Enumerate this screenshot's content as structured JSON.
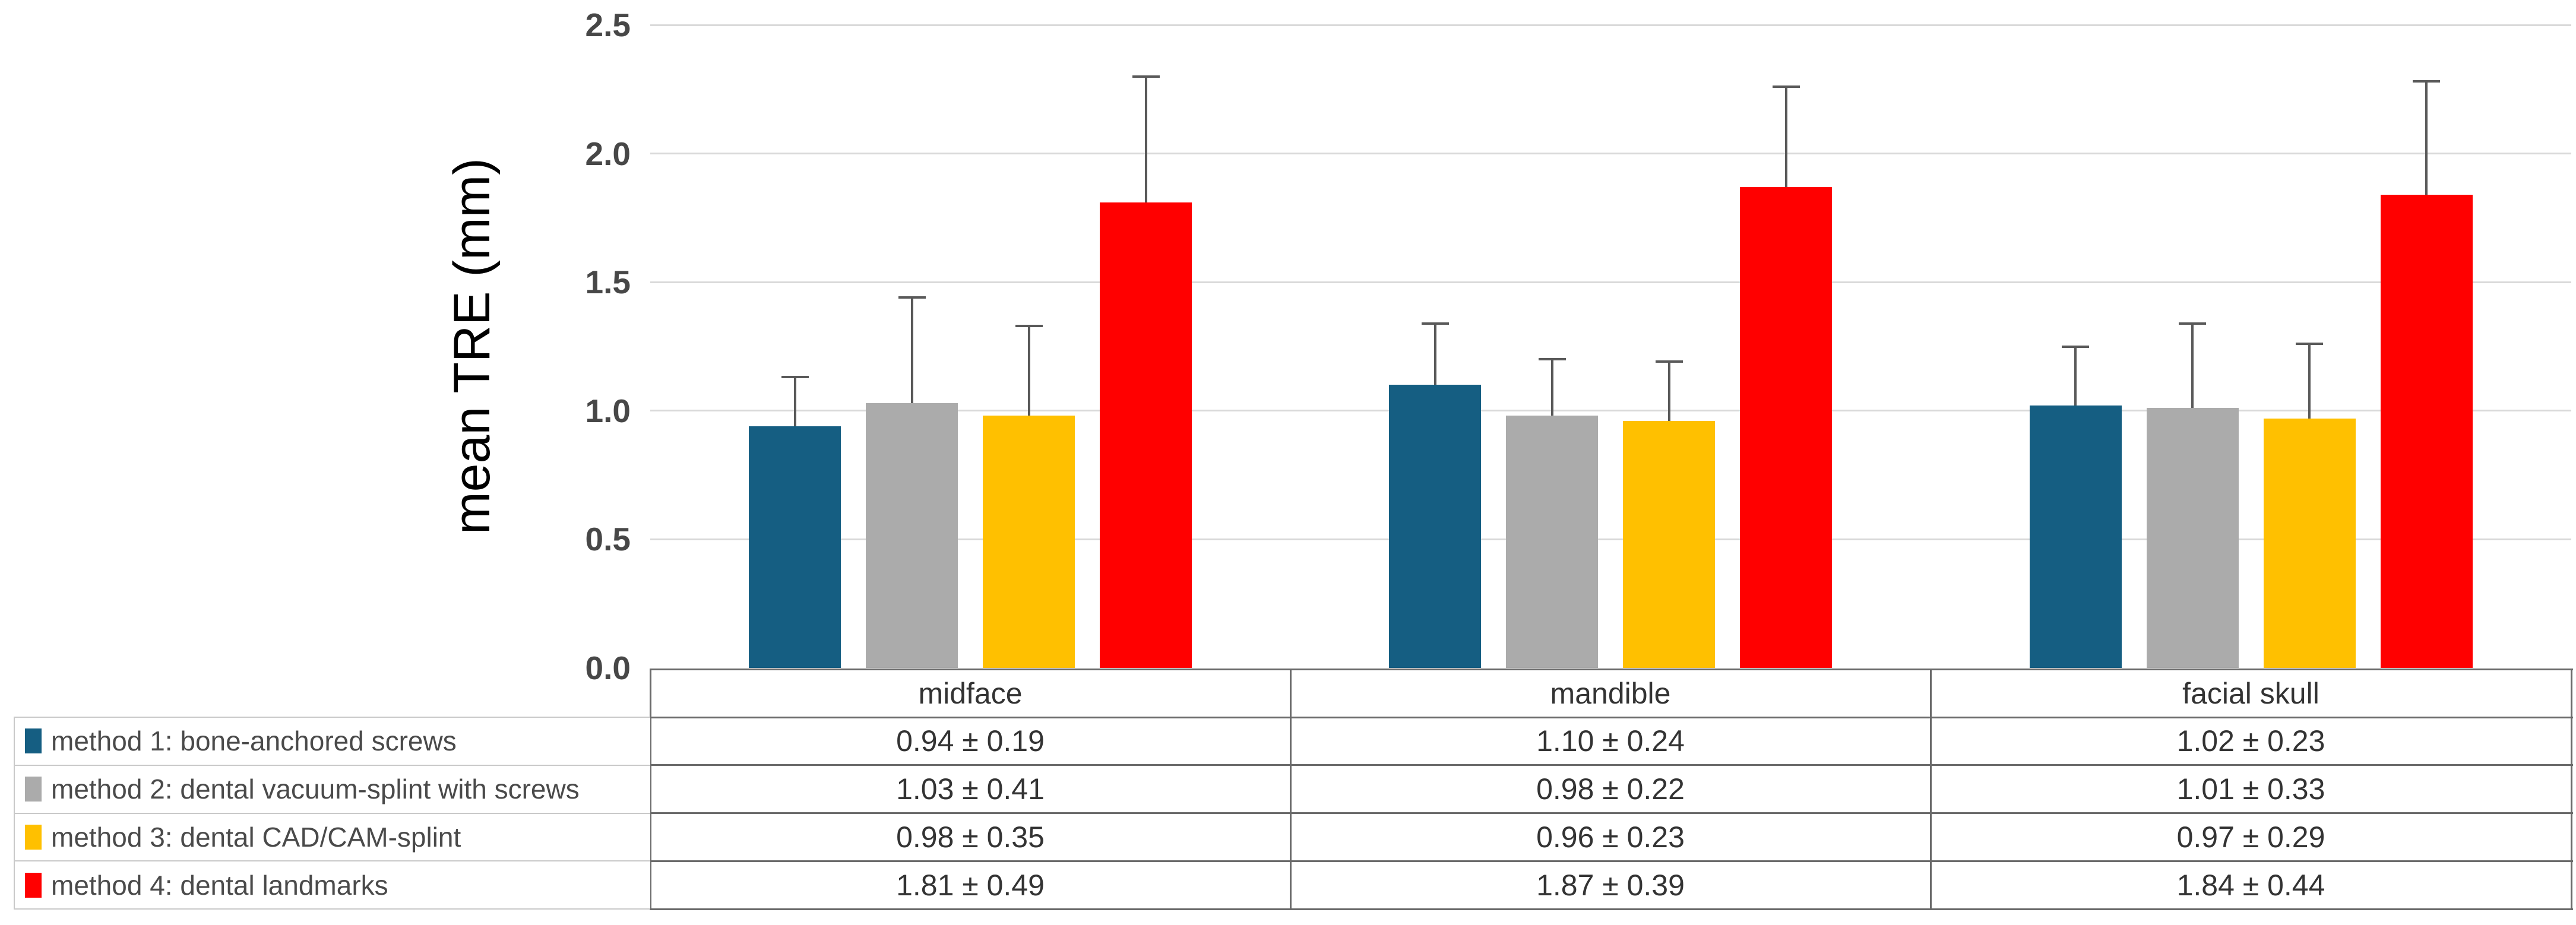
{
  "figure": {
    "background": "#ffffff",
    "kind": "grouped-bar-chart-with-data-table"
  },
  "chart_data": {
    "type": "bar",
    "title": "",
    "xlabel": "",
    "ylabel": "mean TRE (mm)",
    "ylim": [
      0,
      2.5
    ],
    "yticks": [
      0.0,
      0.5,
      1.0,
      1.5,
      2.0,
      2.5
    ],
    "ytick_labels": [
      "0.0",
      "0.5",
      "1.0",
      "1.5",
      "2.0",
      "2.5"
    ],
    "grid": true,
    "gridline_color": "#D9D9D9",
    "error_bar_color": "#595959",
    "legend_position": "left-table-column",
    "categories": [
      "midface",
      "mandible",
      "facial skull"
    ],
    "series": [
      {
        "name": "method 1: bone-anchored screws",
        "color": "#155E82",
        "values": [
          0.94,
          1.1,
          1.02
        ],
        "sd": [
          0.19,
          0.24,
          0.23
        ],
        "labels": [
          "0.94 ± 0.19",
          "1.10 ± 0.24",
          "1.02 ± 0.23"
        ]
      },
      {
        "name": "method 2: dental vacuum-splint with screws",
        "color": "#ABABAB",
        "values": [
          1.03,
          0.98,
          1.01
        ],
        "sd": [
          0.41,
          0.22,
          0.33
        ],
        "labels": [
          "1.03 ± 0.41",
          "0.98 ± 0.22",
          "1.01 ± 0.33"
        ]
      },
      {
        "name": "method 3: dental CAD/CAM-splint",
        "color": "#FFC000",
        "values": [
          0.98,
          0.96,
          0.97
        ],
        "sd": [
          0.35,
          0.23,
          0.29
        ],
        "labels": [
          "0.98 ± 0.35",
          "0.96 ± 0.23",
          "0.97 ± 0.29"
        ]
      },
      {
        "name": "method 4: dental landmarks",
        "color": "#FF0000",
        "values": [
          1.81,
          1.87,
          1.84
        ],
        "sd": [
          0.49,
          0.39,
          0.44
        ],
        "labels": [
          "1.81 ± 0.49",
          "1.87 ± 0.39",
          "1.84 ± 0.44"
        ]
      }
    ]
  }
}
